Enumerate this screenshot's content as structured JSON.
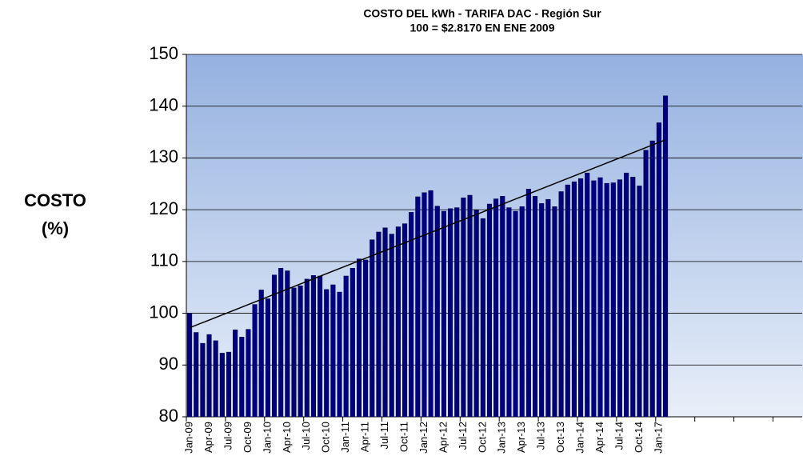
{
  "chart_data": {
    "type": "bar",
    "title": "COSTO DEL kWh - TARIFA DAC - Región Sur",
    "subtitle": "100 = $2.8170 EN ENE 2009",
    "y_label": [
      "COSTO",
      "(%)"
    ],
    "categories": [
      "Jan-09",
      null,
      null,
      "Apr-09",
      null,
      null,
      "Jul-09",
      null,
      null,
      "Oct-09",
      null,
      null,
      "Jan-10",
      null,
      null,
      "Apr-10",
      null,
      null,
      "Jul-10",
      null,
      null,
      "Oct-10",
      null,
      null,
      "Jan-11",
      null,
      null,
      "Apr-11",
      null,
      null,
      "Jul-11",
      null,
      null,
      "Oct-11",
      null,
      null,
      "Jan-12",
      null,
      null,
      "Apr-12",
      null,
      null,
      "Jul-12",
      null,
      null,
      "Oct-12",
      null,
      null,
      "Jan-13",
      null,
      null,
      "Apr-13",
      null,
      null,
      "Jul-13",
      null,
      null,
      "Oct-13",
      null,
      null,
      "Jan-14",
      null,
      null,
      "Apr-14",
      null,
      null,
      "Jul-14",
      null,
      null,
      "Oct-14",
      null,
      null,
      "Jan-17",
      null
    ],
    "values": [
      100,
      96.3,
      94.2,
      95.9,
      94.7,
      92.3,
      92.5,
      96.8,
      95.4,
      96.9,
      101.7,
      104.5,
      102.8,
      107.4,
      108.7,
      108.2,
      104.9,
      105.3,
      106.6,
      107.3,
      107.2,
      104.6,
      105.5,
      104.1,
      107.2,
      108.7,
      110.5,
      110.3,
      114.2,
      115.7,
      116.5,
      115.3,
      116.7,
      117.3,
      119.5,
      122.5,
      123.3,
      123.7,
      120.7,
      119.7,
      120.2,
      120.4,
      122.3,
      122.8,
      119.9,
      118.3,
      121.1,
      122.1,
      122.6,
      120.4,
      119.7,
      120.6,
      124,
      122.6,
      121.2,
      122,
      120.6,
      123.5,
      124.8,
      125.4,
      126,
      127.1,
      125.6,
      126.2,
      125.1,
      125.2,
      125.8,
      127.1,
      126.3,
      124.6,
      131.5,
      133.3,
      136.8,
      142
    ],
    "trendline": [
      97.2,
      133.5
    ],
    "color": "#000080",
    "trend_color": "#000000",
    "ylim": [
      80,
      150
    ],
    "yticks": [
      80,
      90,
      100,
      110,
      120,
      130,
      140,
      150
    ],
    "grid": true
  }
}
